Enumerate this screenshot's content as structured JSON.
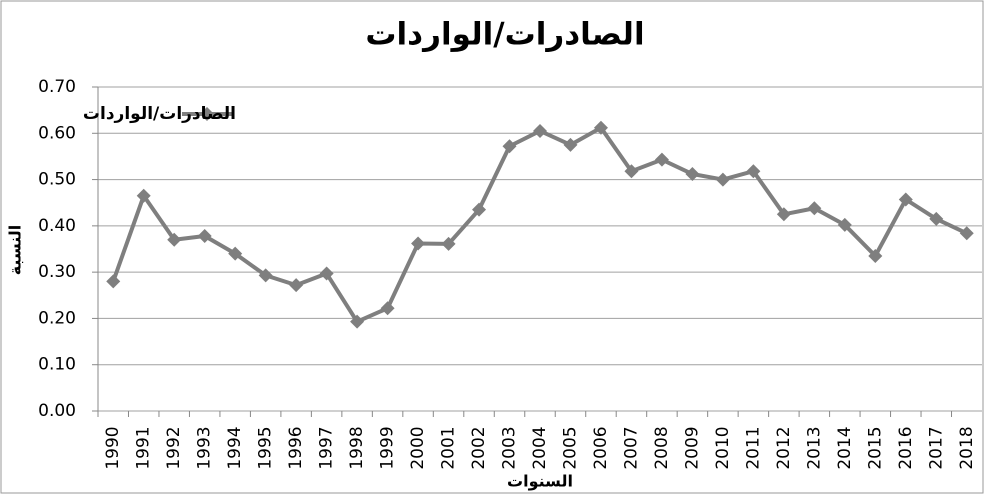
{
  "chart_data": {
    "type": "line",
    "title": "الصادرات/الواردات",
    "x_label": "السنوات",
    "y_label": "النسبة",
    "categories": [
      "1990",
      "1991",
      "1992",
      "1993",
      "1994",
      "1995",
      "1996",
      "1997",
      "1998",
      "1999",
      "2000",
      "2001",
      "2002",
      "2003",
      "2004",
      "2005",
      "2006",
      "2007",
      "2008",
      "2009",
      "2010",
      "2011",
      "2012",
      "2013",
      "2014",
      "2015",
      "2016",
      "2017",
      "2018"
    ],
    "series": [
      {
        "name": "الصادرات/الواردات",
        "color": "#7f7f7f",
        "values": [
          0.28,
          0.465,
          0.37,
          0.378,
          0.34,
          0.293,
          0.272,
          0.297,
          0.193,
          0.222,
          0.362,
          0.361,
          0.435,
          0.572,
          0.605,
          0.575,
          0.612,
          0.518,
          0.543,
          0.512,
          0.5,
          0.518,
          0.425,
          0.438,
          0.402,
          0.335,
          0.457,
          0.415,
          0.384
        ]
      }
    ],
    "ylim": [
      0,
      0.7
    ],
    "yticks": [
      {
        "value": 0,
        "label": "0.00"
      },
      {
        "value": 0.1,
        "label": "0.10"
      },
      {
        "value": 0.2,
        "label": "0.20"
      },
      {
        "value": 0.3,
        "label": "0.30"
      },
      {
        "value": 0.4,
        "label": "0.40"
      },
      {
        "value": 0.5,
        "label": "0.50"
      },
      {
        "value": 0.6,
        "label": "0.60"
      },
      {
        "value": 0.7,
        "label": "0.70"
      }
    ],
    "grid": true,
    "legend": "top-left"
  }
}
